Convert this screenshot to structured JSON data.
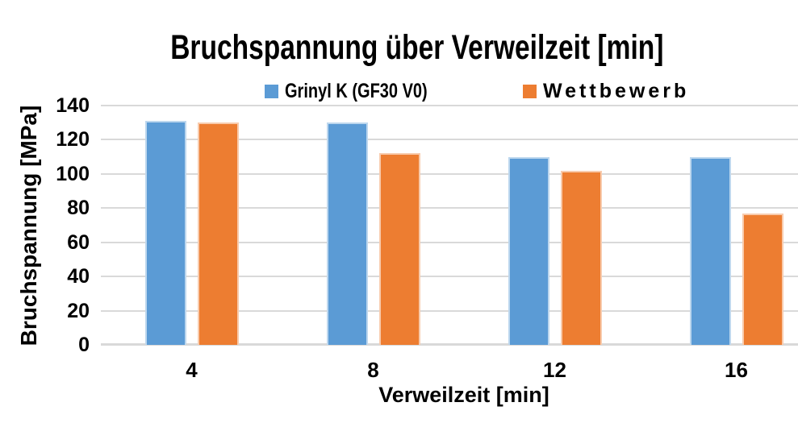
{
  "chart_data": {
    "type": "bar",
    "title": "Bruchspannung über Verweilzeit [min]",
    "xlabel": "Verweilzeit [min]",
    "ylabel": "Bruchspannung [MPa]",
    "categories": [
      "4",
      "8",
      "12",
      "16"
    ],
    "series": [
      {
        "name": "Grinyl K (GF30 V0)",
        "color": "#5B9BD5",
        "border_color": "#BDD7EE",
        "values": [
          131,
          130,
          110,
          110
        ]
      },
      {
        "name": "Wettbewerb",
        "color": "#ED7D31",
        "border_color": "#F8CBAD",
        "values": [
          130,
          112,
          102,
          77
        ]
      }
    ],
    "ylim": [
      0,
      140
    ],
    "ytick_step": 20,
    "yticks": [
      "0",
      "20",
      "40",
      "60",
      "80",
      "100",
      "120",
      "140"
    ],
    "grid": true,
    "gridline_color": "#D9D9D9",
    "legend_position": "top-center",
    "text_color": "#000000",
    "background_color": "#FFFFFF"
  }
}
